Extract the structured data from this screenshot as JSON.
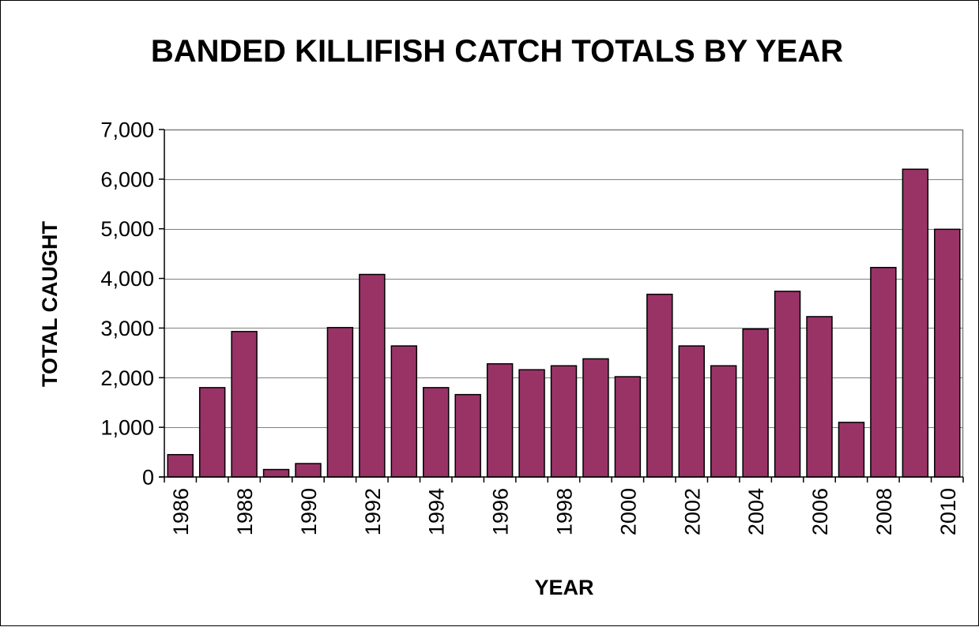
{
  "chart_data": {
    "type": "bar",
    "title": "BANDED KILLIFISH CATCH TOTALS BY YEAR",
    "xlabel": "YEAR",
    "ylabel": "TOTAL CAUGHT",
    "categories": [
      "1986",
      "1987",
      "1988",
      "1989",
      "1990",
      "1991",
      "1992",
      "1993",
      "1994",
      "1995",
      "1996",
      "1997",
      "1998",
      "1999",
      "2000",
      "2001",
      "2002",
      "2003",
      "2004",
      "2005",
      "2006",
      "2007",
      "2008",
      "2009",
      "2010"
    ],
    "x_tick_labels": [
      "1986",
      "",
      "1988",
      "",
      "1990",
      "",
      "1992",
      "",
      "1994",
      "",
      "1996",
      "",
      "1998",
      "",
      "2000",
      "",
      "2002",
      "",
      "2004",
      "",
      "2006",
      "",
      "2008",
      "",
      "2010"
    ],
    "values": [
      450,
      1800,
      2930,
      150,
      270,
      3010,
      4080,
      2640,
      1800,
      1660,
      2280,
      2160,
      2240,
      2380,
      2020,
      3680,
      2640,
      2240,
      2980,
      3740,
      3230,
      1100,
      4220,
      6200,
      4990
    ],
    "ylim": [
      0,
      7000
    ],
    "y_ticks": [
      0,
      1000,
      2000,
      3000,
      4000,
      5000,
      6000,
      7000
    ],
    "y_tick_labels": [
      "0",
      "1,000",
      "2,000",
      "3,000",
      "4,000",
      "5,000",
      "6,000",
      "7,000"
    ],
    "grid": true,
    "legend": "none",
    "colors": {
      "bar_fill": "#993366",
      "bar_stroke": "#000000",
      "gridline": "#808080",
      "plot_border": "#808080",
      "axis": "#000000"
    }
  }
}
